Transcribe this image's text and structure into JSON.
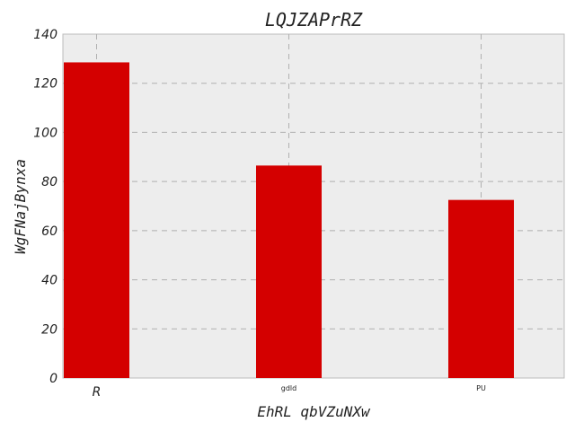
{
  "chart_data": {
    "type": "bar",
    "title": "LQJZAPrRZ",
    "xlabel": "EhRL qbVZuNXw",
    "ylabel": "WgFNajBynxa",
    "categories": [
      "R",
      "gdld",
      "PU"
    ],
    "values": [
      128.5,
      86.5,
      72.5
    ],
    "ylim": [
      0,
      140
    ],
    "yticks": [
      0,
      20,
      40,
      60,
      80,
      100,
      120,
      140
    ],
    "grid": true,
    "bar_color": "#d40000",
    "background_color": "#ededed",
    "grid_color": "#b0b0b0"
  }
}
